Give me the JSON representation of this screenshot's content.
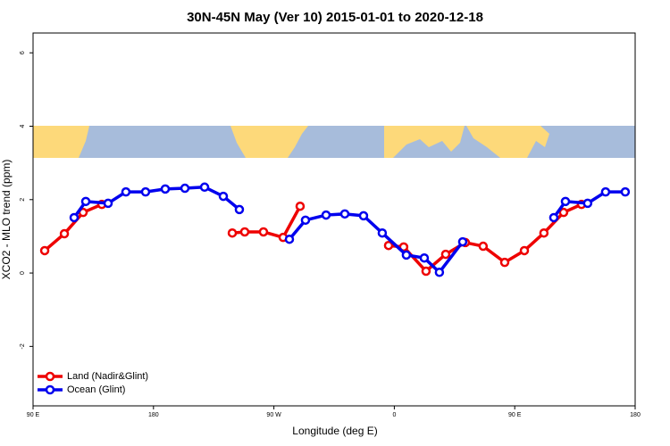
{
  "chart_data": {
    "type": "line",
    "title": "30N-45N May (Ver 10)   2015-01-01 to 2020-12-18",
    "x_label": "Longitude (deg E)",
    "y_label": "XCO2 - MLO trend (ppm)",
    "xlim": [
      90,
      540
    ],
    "xticks": [
      {
        "value": 90,
        "label": "90 E"
      },
      180,
      {
        "value": 270,
        "label": "90 W"
      },
      {
        "value": 360,
        "label": "0"
      },
      {
        "value": 450,
        "label": "90 E"
      },
      {
        "value": 540,
        "label": "180"
      }
    ],
    "ylim": [
      -3.62,
      6.54
    ],
    "yticks": [
      -2,
      0,
      2,
      4,
      6
    ],
    "legend": "bottom-left",
    "series": [
      {
        "name": "Land (Nadir&Glint)",
        "color": "#ee0000",
        "x": [
          98.7,
          113.4,
          127.4,
          141.4,
          null,
          238.9,
          248.2,
          262.2,
          276.9,
          289.6,
          null,
          355.7,
          367,
          383.7,
          398.4,
          413.1,
          426.4,
          442.5,
          457.2,
          471.8,
          486.5,
          499.9
        ],
        "values": [
          0.61,
          1.07,
          1.65,
          1.87,
          null,
          1.09,
          1.12,
          1.12,
          0.97,
          1.82,
          null,
          0.75,
          0.71,
          0.05,
          0.51,
          0.83,
          0.73,
          0.29,
          0.61,
          1.09,
          1.65,
          1.87
        ]
      },
      {
        "name": "Ocean (Glint)",
        "color": "#0000ee",
        "x": [
          120.7,
          129.4,
          146.1,
          159.4,
          174.1,
          188.8,
          203.5,
          218.2,
          232.2,
          244.2,
          null,
          281.6,
          293.6,
          309,
          323,
          337,
          351,
          369,
          382.4,
          393.7,
          411.1,
          null,
          479.2,
          487.9,
          504.5,
          517.9,
          532.6
        ],
        "values": [
          1.51,
          1.95,
          1.9,
          2.21,
          2.21,
          2.29,
          2.31,
          2.34,
          2.09,
          1.73,
          null,
          0.92,
          1.44,
          1.58,
          1.61,
          1.56,
          1.09,
          0.49,
          0.41,
          0.02,
          0.85,
          null,
          1.51,
          1.95,
          1.9,
          2.21,
          2.21
        ]
      }
    ]
  }
}
